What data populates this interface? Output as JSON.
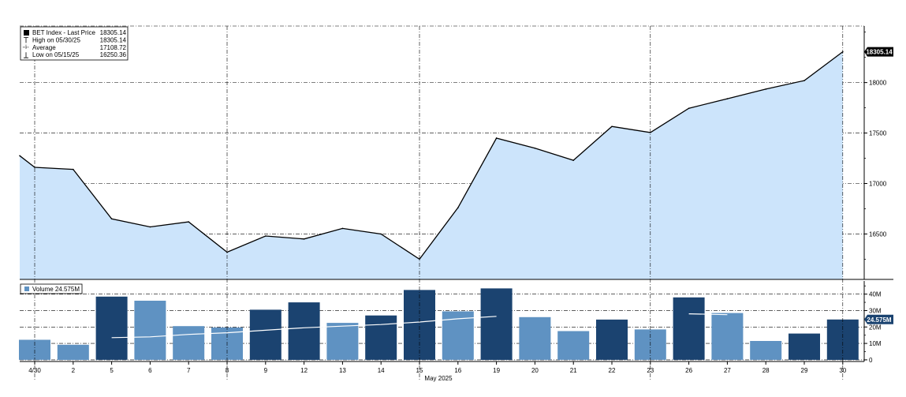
{
  "chart_data": [
    {
      "type": "area",
      "x": [
        "4/29",
        "4/30",
        "5/2",
        "5/5",
        "5/6",
        "5/7",
        "5/8",
        "5/9",
        "5/12",
        "5/13",
        "5/14",
        "5/15",
        "5/16",
        "5/19",
        "5/20",
        "5/21",
        "5/22",
        "5/23",
        "5/26",
        "5/27",
        "5/28",
        "5/29",
        "5/30"
      ],
      "series": [
        {
          "name": "BET Index - Last Price",
          "values": [
            17275,
            17160,
            17140,
            16650,
            16570,
            16620,
            16320,
            16480,
            16450,
            16555,
            16500,
            16250,
            16760,
            17450,
            17350,
            17230,
            17565,
            17505,
            17745,
            17840,
            17935,
            18020,
            18305.14
          ]
        }
      ],
      "ylim": [
        16050,
        18560
      ],
      "yticks": [
        16500,
        17000,
        17500,
        18000
      ],
      "ytick_labels": [
        "16500",
        "17000",
        "17500",
        "18000"
      ],
      "last_value_label": "18305.14",
      "legend": {
        "position": "top-left",
        "rows": [
          {
            "label": "BET Index - Last Price",
            "value": "18305.14",
            "marker": "swatch"
          },
          {
            "label": "High on 05/30/25",
            "value": "18305.14",
            "marker": "high"
          },
          {
            "label": "Average",
            "value": "17108.72",
            "marker": "average"
          },
          {
            "label": "Low on 05/15/25",
            "value": "16250.36",
            "marker": "low"
          }
        ]
      },
      "colors": {
        "line": "#000000",
        "fill": "#cce4fb"
      }
    },
    {
      "type": "bar",
      "categories": [
        "4/30",
        "2",
        "5",
        "6",
        "7",
        "8",
        "9",
        "12",
        "13",
        "14",
        "15",
        "16",
        "19",
        "20",
        "21",
        "22",
        "23",
        "26",
        "27",
        "28",
        "29",
        "30"
      ],
      "series": [
        {
          "name": "Volume",
          "values": [
            12.2,
            9.2,
            38.5,
            36,
            20.5,
            19.7,
            30.5,
            35,
            22.5,
            27,
            42.5,
            29.5,
            43.5,
            26,
            17.5,
            24.5,
            18.5,
            38,
            28.5,
            11.5,
            16,
            24.575
          ]
        }
      ],
      "bar_tones": [
        "light",
        "light",
        "dark",
        "light",
        "light",
        "light",
        "dark",
        "dark",
        "light",
        "dark",
        "dark",
        "light",
        "dark",
        "light",
        "light",
        "dark",
        "light",
        "dark",
        "light",
        "light",
        "dark",
        "dark"
      ],
      "moving_average": [
        null,
        null,
        13.5,
        14,
        15.5,
        16.5,
        18,
        19.5,
        20.5,
        21.5,
        23,
        25,
        26.5,
        null,
        null,
        null,
        null,
        28,
        27.5,
        null,
        null,
        null
      ],
      "ylim": [
        -1,
        48
      ],
      "yticks": [
        0,
        10,
        20,
        30,
        40
      ],
      "ytick_labels": [
        "0",
        "10M",
        "20M",
        "30M",
        "40M"
      ],
      "last_value_label": "24.575M",
      "legend": {
        "label": "Volume",
        "value": "24.575M",
        "position": "top-left"
      },
      "xlabel": "May 2025",
      "colors": {
        "dark": "#1b4370",
        "light": "#5f92c2",
        "ma": "#ffffff"
      }
    }
  ]
}
